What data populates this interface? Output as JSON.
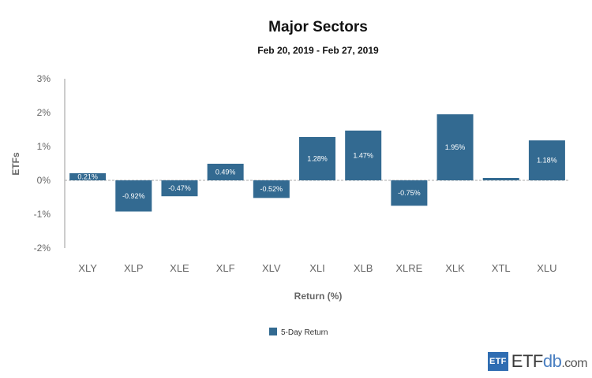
{
  "chart_data": {
    "type": "bar",
    "title": "Major Sectors",
    "subtitle": "Feb 20, 2019 - Feb 27, 2019",
    "xlabel": "Return (%)",
    "ylabel": "ETFs",
    "ylim": [
      -2,
      3
    ],
    "yticks": [
      "3%",
      "2%",
      "1%",
      "0%",
      "-1%",
      "-2%"
    ],
    "ytick_values": [
      3,
      2,
      1,
      0,
      -1,
      -2
    ],
    "categories": [
      "XLY",
      "XLP",
      "XLE",
      "XLF",
      "XLV",
      "XLI",
      "XLB",
      "XLRE",
      "XLK",
      "XTL",
      "XLU"
    ],
    "values": [
      0.21,
      -0.92,
      -0.47,
      0.49,
      -0.52,
      1.28,
      1.47,
      -0.75,
      1.95,
      0.07,
      1.18
    ],
    "data_labels": [
      "0.21%",
      "-0.92%",
      "-0.47%",
      "0.49%",
      "-0.52%",
      "1.28%",
      "1.47%",
      "-0.75%",
      "1.95%",
      "",
      "1.18%"
    ],
    "series_name": "5-Day Return",
    "legend_position": "bottom-center",
    "grid": false,
    "bar_color": "#336a91"
  },
  "logo": {
    "box": "ETF",
    "brand": "ETF",
    "brand_thin": "db",
    "domain": ".com"
  }
}
